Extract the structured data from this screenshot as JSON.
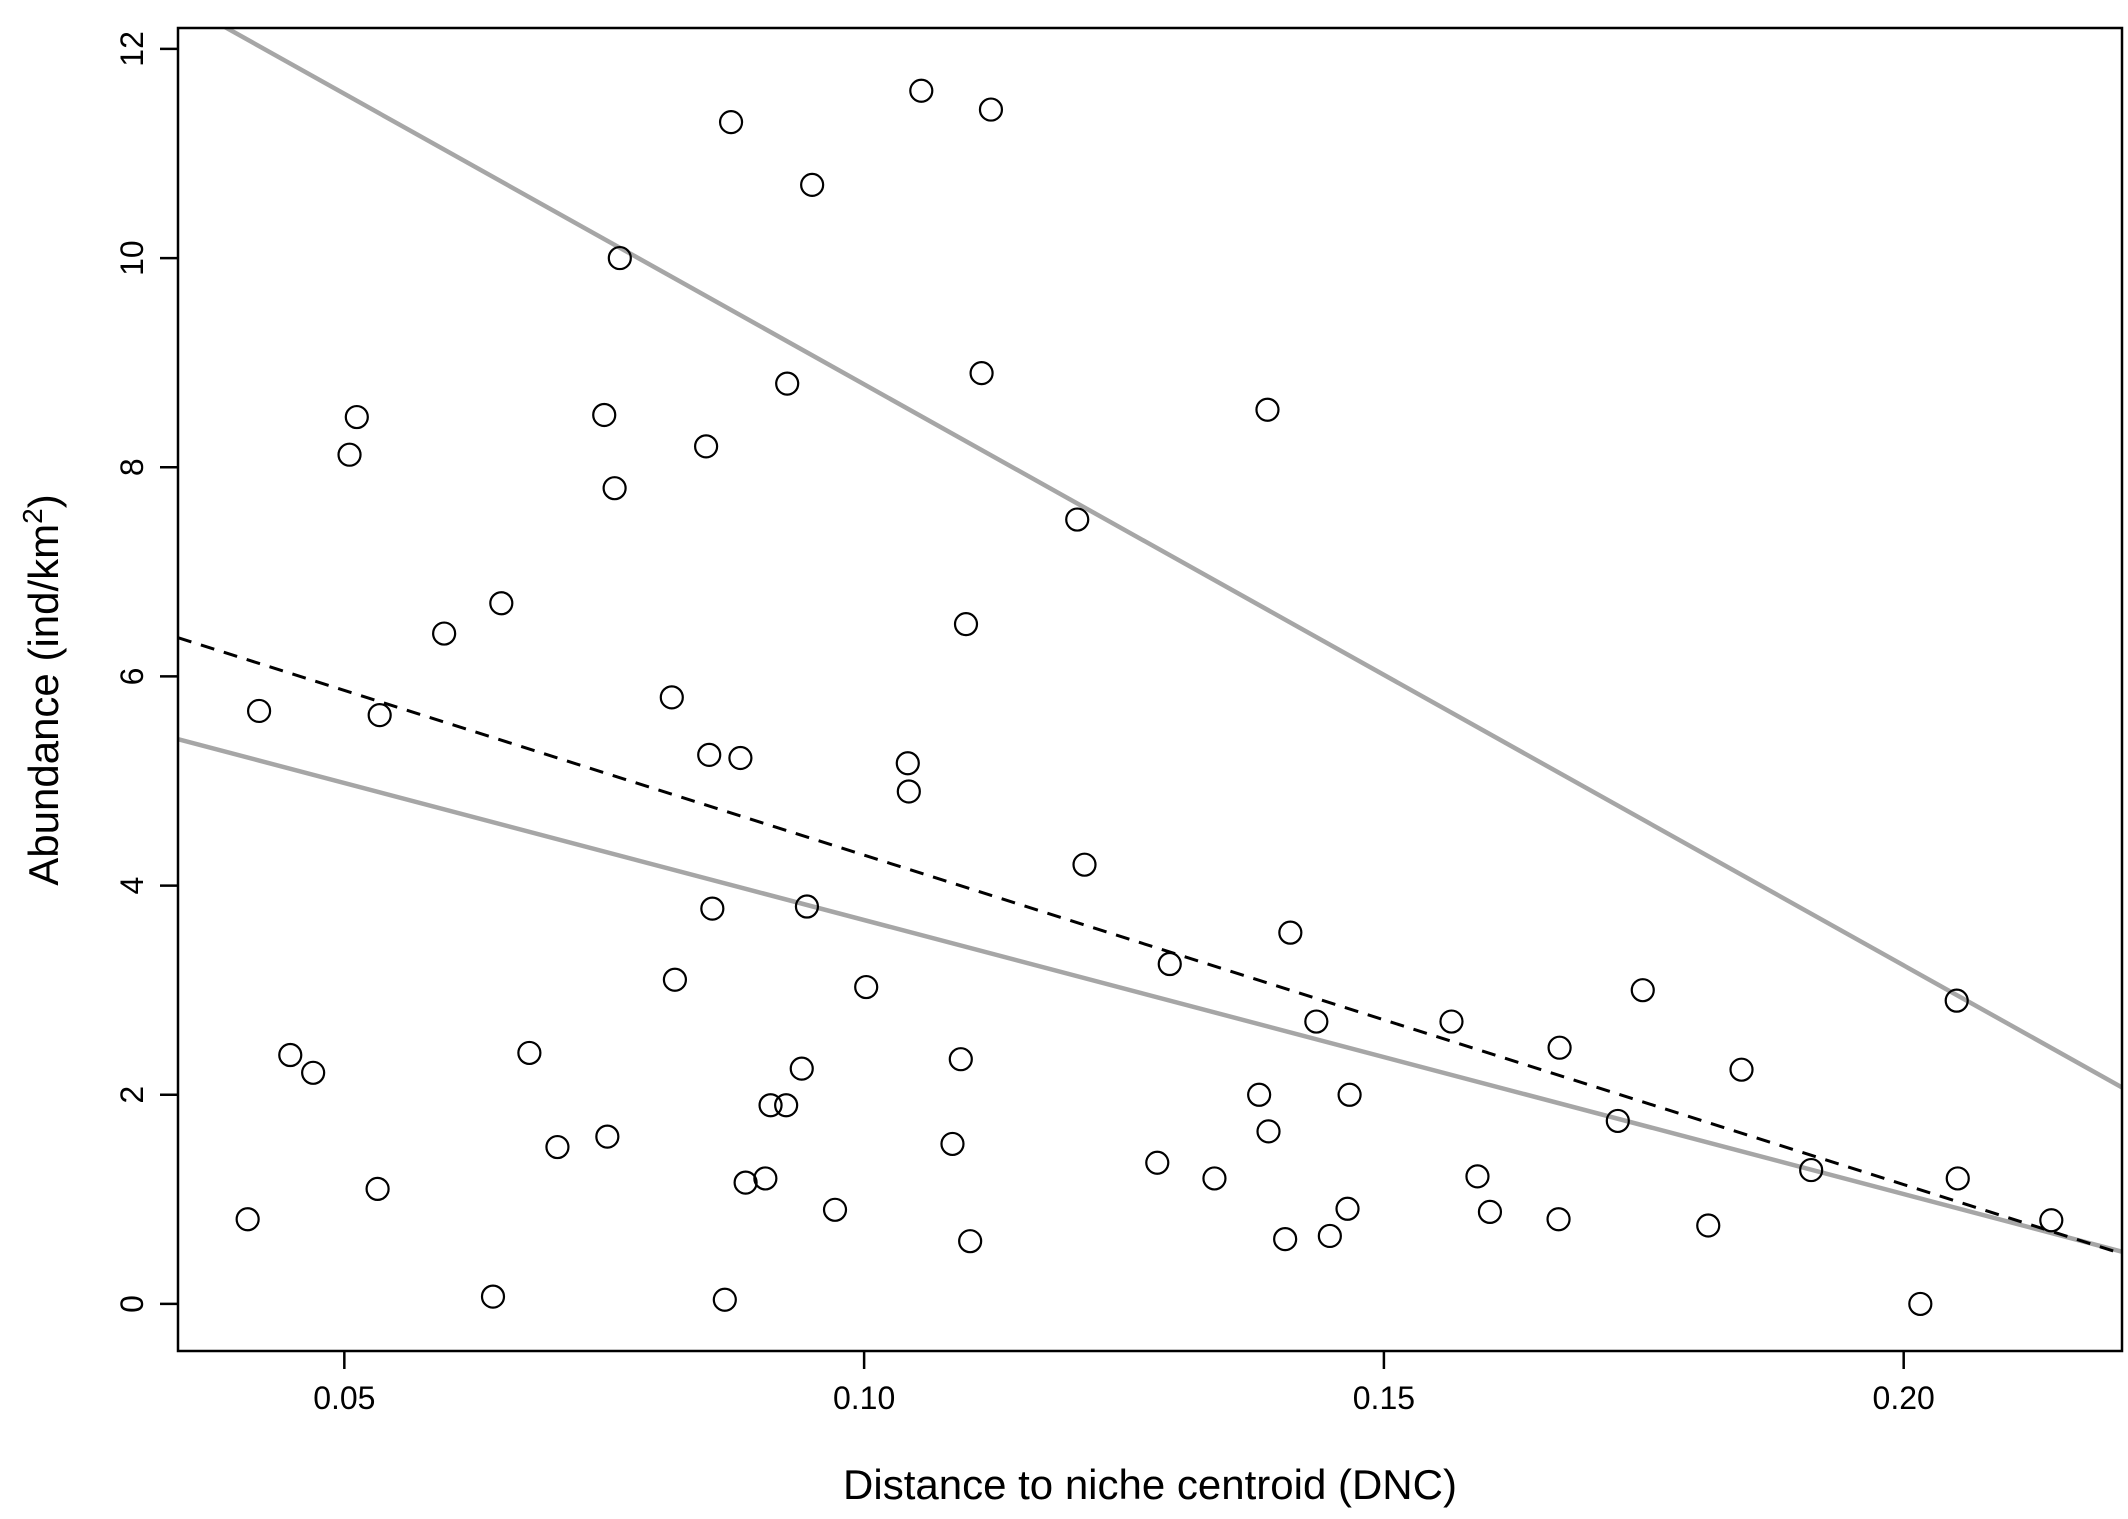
{
  "chart_data": {
    "type": "scatter",
    "xlabel": "Distance to niche centroid (DNC)",
    "ylabel_main": "Abundance (ind/km",
    "ylabel_sup": "2",
    "ylabel_close": ")",
    "xlim": [
      0.034,
      0.221
    ],
    "ylim": [
      -0.45,
      12.2
    ],
    "x_ticks": [
      {
        "value": 0.05,
        "label": "0.05"
      },
      {
        "value": 0.1,
        "label": "0.10"
      },
      {
        "value": 0.15,
        "label": "0.15"
      },
      {
        "value": 0.2,
        "label": "0.20"
      }
    ],
    "y_ticks": [
      {
        "value": 0,
        "label": "0"
      },
      {
        "value": 2,
        "label": "2"
      },
      {
        "value": 4,
        "label": "4"
      },
      {
        "value": 6,
        "label": "6"
      },
      {
        "value": 8,
        "label": "8"
      },
      {
        "value": 10,
        "label": "10"
      },
      {
        "value": 12,
        "label": "12"
      }
    ],
    "grid": false,
    "colors": {
      "points": "#000000",
      "solid_lines": "#a6a6a6",
      "dashed_line": "#000000"
    },
    "points": [
      [
        0.0407,
        0.81
      ],
      [
        0.0418,
        5.67
      ],
      [
        0.0448,
        2.38
      ],
      [
        0.047,
        2.21
      ],
      [
        0.0505,
        8.12
      ],
      [
        0.0512,
        8.48
      ],
      [
        0.0532,
        1.1
      ],
      [
        0.0534,
        5.63
      ],
      [
        0.0596,
        6.41
      ],
      [
        0.0643,
        0.07
      ],
      [
        0.0651,
        6.7
      ],
      [
        0.0678,
        2.4
      ],
      [
        0.0705,
        1.5
      ],
      [
        0.075,
        8.5
      ],
      [
        0.0753,
        1.6
      ],
      [
        0.076,
        7.8
      ],
      [
        0.0765,
        10.0
      ],
      [
        0.0815,
        5.8
      ],
      [
        0.0818,
        3.1
      ],
      [
        0.0848,
        8.2
      ],
      [
        0.0851,
        5.25
      ],
      [
        0.0854,
        3.78
      ],
      [
        0.0866,
        0.04
      ],
      [
        0.0872,
        11.3
      ],
      [
        0.0881,
        5.22
      ],
      [
        0.0886,
        1.16
      ],
      [
        0.0905,
        1.2
      ],
      [
        0.091,
        1.9
      ],
      [
        0.0925,
        1.9
      ],
      [
        0.0926,
        8.8
      ],
      [
        0.094,
        2.25
      ],
      [
        0.0945,
        3.8
      ],
      [
        0.095,
        10.7
      ],
      [
        0.0972,
        0.9
      ],
      [
        0.1002,
        3.03
      ],
      [
        0.1042,
        5.17
      ],
      [
        0.1043,
        4.9
      ],
      [
        0.1055,
        11.6
      ],
      [
        0.1085,
        1.53
      ],
      [
        0.1093,
        2.34
      ],
      [
        0.1098,
        6.5
      ],
      [
        0.1102,
        0.6
      ],
      [
        0.1113,
        8.9
      ],
      [
        0.1122,
        11.42
      ],
      [
        0.1205,
        7.5
      ],
      [
        0.1212,
        4.2
      ],
      [
        0.1282,
        1.35
      ],
      [
        0.1294,
        3.25
      ],
      [
        0.1337,
        1.2
      ],
      [
        0.138,
        2.0
      ],
      [
        0.1388,
        8.55
      ],
      [
        0.1389,
        1.65
      ],
      [
        0.1405,
        0.62
      ],
      [
        0.141,
        3.55
      ],
      [
        0.1435,
        2.7
      ],
      [
        0.1448,
        0.65
      ],
      [
        0.1465,
        0.91
      ],
      [
        0.1467,
        2.0
      ],
      [
        0.1565,
        2.7
      ],
      [
        0.159,
        1.22
      ],
      [
        0.1602,
        0.88
      ],
      [
        0.1668,
        0.81
      ],
      [
        0.1669,
        2.45
      ],
      [
        0.1725,
        1.75
      ],
      [
        0.1749,
        3.0
      ],
      [
        0.1812,
        0.75
      ],
      [
        0.1844,
        2.24
      ],
      [
        0.1911,
        1.28
      ],
      [
        0.2016,
        0.0
      ],
      [
        0.2051,
        2.9
      ],
      [
        0.2052,
        1.2
      ],
      [
        0.2142,
        0.8
      ]
    ],
    "lines": [
      {
        "style": "solid",
        "x": [
          0.034,
          0.221
        ],
        "y": [
          12.46,
          2.07
        ]
      },
      {
        "style": "solid",
        "x": [
          0.034,
          0.221
        ],
        "y": [
          5.4,
          0.5
        ]
      },
      {
        "style": "dashed",
        "x": [
          0.034,
          0.221
        ],
        "y": [
          6.37,
          0.48
        ]
      }
    ]
  }
}
